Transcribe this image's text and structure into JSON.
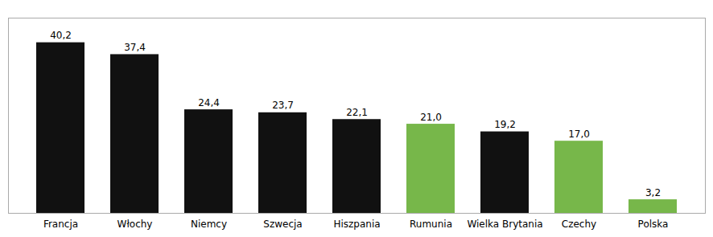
{
  "chart_data": {
    "type": "bar",
    "categories": [
      "Francja",
      "Włochy",
      "Niemcy",
      "Szwecja",
      "Hiszpania",
      "Rumunia",
      "Wielka Brytania",
      "Czechy",
      "Polska"
    ],
    "values": [
      40.2,
      37.4,
      24.4,
      23.7,
      22.1,
      21.0,
      19.2,
      17.0,
      3.2
    ],
    "value_labels": [
      "40,2",
      "37,4",
      "24,4",
      "23,7",
      "22,1",
      "21,0",
      "19,2",
      "17,0",
      "3,2"
    ],
    "colors": [
      "#111111",
      "#111111",
      "#111111",
      "#111111",
      "#111111",
      "#77b74a",
      "#111111",
      "#77b74a",
      "#77b74a"
    ],
    "ylim": [
      0,
      46
    ],
    "data_labels": true,
    "tick_labels": "x",
    "grid": false
  }
}
